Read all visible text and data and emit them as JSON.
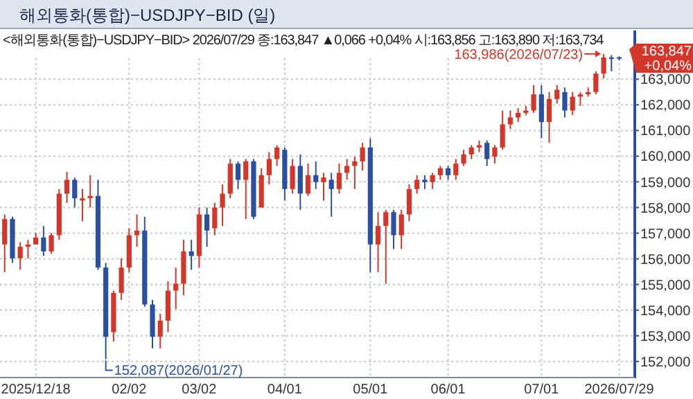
{
  "chart_data": {
    "type": "candlestick",
    "title": "해외통화(통합)−USDJPY−BID (일)",
    "subtitle": "<해외통화(통합)−USDJPY−BID> 2026/07/29 종:163,847 ▲0,066 +0,04% 시:163,856 고:163,890 저:163,734",
    "categories": [
      null,
      null,
      null,
      null,
      "2025/12/18",
      null,
      null,
      null,
      null,
      null,
      null,
      null,
      null,
      null,
      null,
      null,
      "02/02",
      null,
      null,
      null,
      null,
      null,
      null,
      null,
      null,
      "03/02",
      null,
      null,
      null,
      null,
      null,
      null,
      null,
      null,
      null,
      null,
      "04/01",
      null,
      null,
      null,
      null,
      null,
      null,
      null,
      null,
      null,
      null,
      "05/01",
      null,
      null,
      null,
      null,
      null,
      null,
      null,
      null,
      null,
      "06/01",
      null,
      null,
      null,
      null,
      null,
      null,
      null,
      null,
      null,
      null,
      null,
      "07/01",
      null,
      null,
      null,
      null,
      null,
      null,
      null,
      null,
      null,
      "2026/07/29"
    ],
    "ohlc": [
      [
        156560,
        157730,
        155480,
        157550
      ],
      [
        157550,
        157640,
        155840,
        156020
      ],
      [
        156020,
        156650,
        155570,
        156470
      ],
      [
        156470,
        156740,
        156020,
        156560
      ],
      [
        156560,
        157010,
        156560,
        156830
      ],
      [
        156830,
        157280,
        156110,
        156290
      ],
      [
        156290,
        157010,
        156200,
        156920
      ],
      [
        156920,
        158720,
        156740,
        158540
      ],
      [
        158540,
        159390,
        158180,
        159080
      ],
      [
        159080,
        159170,
        158000,
        158360
      ],
      [
        158270,
        158720,
        157460,
        158360
      ],
      [
        158360,
        159260,
        158000,
        158450
      ],
      [
        158450,
        159080,
        155570,
        155660
      ],
      [
        155660,
        155840,
        152087,
        152960
      ],
      [
        153140,
        154760,
        152780,
        154670
      ],
      [
        154670,
        156020,
        154400,
        155660
      ],
      [
        155660,
        157190,
        155480,
        156920
      ],
      [
        156920,
        157730,
        156470,
        157100
      ],
      [
        157100,
        157640,
        154130,
        154220
      ],
      [
        154220,
        154400,
        152510,
        152960
      ],
      [
        152960,
        153860,
        152510,
        153590
      ],
      [
        153590,
        155120,
        153140,
        154760
      ],
      [
        154760,
        155660,
        154040,
        155030
      ],
      [
        155030,
        156740,
        154580,
        156290
      ],
      [
        156290,
        156740,
        155570,
        156110
      ],
      [
        156110,
        158000,
        155660,
        157730
      ],
      [
        157730,
        158000,
        156470,
        157100
      ],
      [
        157190,
        158180,
        156920,
        158000
      ],
      [
        158000,
        158900,
        157280,
        158540
      ],
      [
        158540,
        159890,
        158360,
        159710
      ],
      [
        159710,
        159800,
        158720,
        159080
      ],
      [
        159080,
        159890,
        157550,
        159800
      ],
      [
        159800,
        159890,
        157550,
        157640
      ],
      [
        158000,
        159530,
        158000,
        159260
      ],
      [
        159260,
        160160,
        158900,
        159890
      ],
      [
        159890,
        160430,
        159620,
        160340
      ],
      [
        160250,
        160340,
        158270,
        158720
      ],
      [
        158720,
        159890,
        158540,
        159620
      ],
      [
        159620,
        160070,
        157910,
        158540
      ],
      [
        158540,
        159710,
        158450,
        159260
      ],
      [
        159260,
        159800,
        158720,
        158990
      ],
      [
        158990,
        159350,
        158270,
        159170
      ],
      [
        159080,
        159350,
        157640,
        158720
      ],
      [
        158720,
        159710,
        158540,
        159350
      ],
      [
        159350,
        159890,
        159080,
        159620
      ],
      [
        159620,
        159980,
        158720,
        159800
      ],
      [
        159800,
        160520,
        159440,
        160340
      ],
      [
        160340,
        160700,
        155480,
        156560
      ],
      [
        156560,
        157820,
        155480,
        157280
      ],
      [
        157280,
        157910,
        155030,
        157820
      ],
      [
        157820,
        157910,
        156380,
        156920
      ],
      [
        156920,
        157910,
        156380,
        157730
      ],
      [
        157730,
        158900,
        157460,
        158720
      ],
      [
        158720,
        159260,
        158540,
        159080
      ],
      [
        159080,
        159260,
        158720,
        158990
      ],
      [
        158990,
        159350,
        158720,
        159260
      ],
      [
        159260,
        159620,
        159080,
        159530
      ],
      [
        159530,
        159620,
        159080,
        159260
      ],
      [
        159260,
        159890,
        159080,
        159710
      ],
      [
        159710,
        160250,
        159620,
        160070
      ],
      [
        160070,
        160430,
        159890,
        160340
      ],
      [
        160340,
        160610,
        160160,
        160430
      ],
      [
        160520,
        160610,
        159620,
        159890
      ],
      [
        159980,
        160430,
        159710,
        160340
      ],
      [
        160340,
        161780,
        160250,
        161240
      ],
      [
        161240,
        161780,
        161060,
        161510
      ],
      [
        161510,
        161870,
        161330,
        161690
      ],
      [
        161690,
        161960,
        161600,
        161780
      ],
      [
        161780,
        162770,
        161690,
        162410
      ],
      [
        162410,
        162770,
        160700,
        161330
      ],
      [
        161330,
        162500,
        160520,
        162230
      ],
      [
        162230,
        162770,
        162050,
        162590
      ],
      [
        162500,
        162680,
        161510,
        161780
      ],
      [
        161780,
        162500,
        161600,
        162320
      ],
      [
        162320,
        162500,
        161960,
        162410
      ],
      [
        162410,
        162680,
        162320,
        162500
      ],
      [
        162500,
        163310,
        162410,
        163220
      ],
      [
        163220,
        163986,
        163040,
        163850
      ],
      [
        163850,
        163940,
        163310,
        163790
      ],
      [
        163856,
        163890,
        163734,
        163847
      ]
    ],
    "colors": [
      "#d2372b",
      "#2b50a0",
      "#d2372b",
      "#d2372b",
      "#d2372b",
      "#2b50a0",
      "#d2372b",
      "#d2372b",
      "#d2372b",
      "#2b50a0",
      "#d2372b",
      "#d2372b",
      "#2b50a0",
      "#2b50a0",
      "#d2372b",
      "#d2372b",
      "#d2372b",
      "#d2372b",
      "#2b50a0",
      "#2b50a0",
      "#d2372b",
      "#d2372b",
      "#d2372b",
      "#d2372b",
      "#2b50a0",
      "#d2372b",
      "#2b50a0",
      "#d2372b",
      "#d2372b",
      "#d2372b",
      "#2b50a0",
      "#d2372b",
      "#2b50a0",
      "#d2372b",
      "#d2372b",
      "#d2372b",
      "#2b50a0",
      "#d2372b",
      "#2b50a0",
      "#d2372b",
      "#2b50a0",
      "#d2372b",
      "#2b50a0",
      "#d2372b",
      "#d2372b",
      "#d2372b",
      "#d2372b",
      "#2b50a0",
      "#d2372b",
      "#d2372b",
      "#2b50a0",
      "#d2372b",
      "#d2372b",
      "#d2372b",
      "#2b50a0",
      "#d2372b",
      "#d2372b",
      "#2b50a0",
      "#d2372b",
      "#d2372b",
      "#d2372b",
      "#d2372b",
      "#2b50a0",
      "#d2372b",
      "#d2372b",
      "#d2372b",
      "#d2372b",
      "#d2372b",
      "#d2372b",
      "#2b50a0",
      "#d2372b",
      "#d2372b",
      "#2b50a0",
      "#d2372b",
      "#d2372b",
      "#d2372b",
      "#d2372b",
      "#d2372b",
      "#2b50a0",
      "#2b50a0"
    ],
    "ylim": [
      151400,
      164900
    ],
    "yticks": [
      {
        "value": 152000,
        "label": "152,000"
      },
      {
        "value": 153000,
        "label": "153,000"
      },
      {
        "value": 154000,
        "label": "154,000"
      },
      {
        "value": 155000,
        "label": "155,000"
      },
      {
        "value": 156000,
        "label": "156,000"
      },
      {
        "value": 157000,
        "label": "157,000"
      },
      {
        "value": 158000,
        "label": "158,000"
      },
      {
        "value": 159000,
        "label": "159,000"
      },
      {
        "value": 160000,
        "label": "160,000"
      },
      {
        "value": 161000,
        "label": "161,000"
      },
      {
        "value": 162000,
        "label": "162,000"
      },
      {
        "value": 163000,
        "label": "163,000"
      }
    ],
    "grid": true,
    "annotations": [
      "152,087(2026/01/27)",
      "163,986(2026/07/23)",
      "163,847",
      "+0,04%"
    ]
  }
}
